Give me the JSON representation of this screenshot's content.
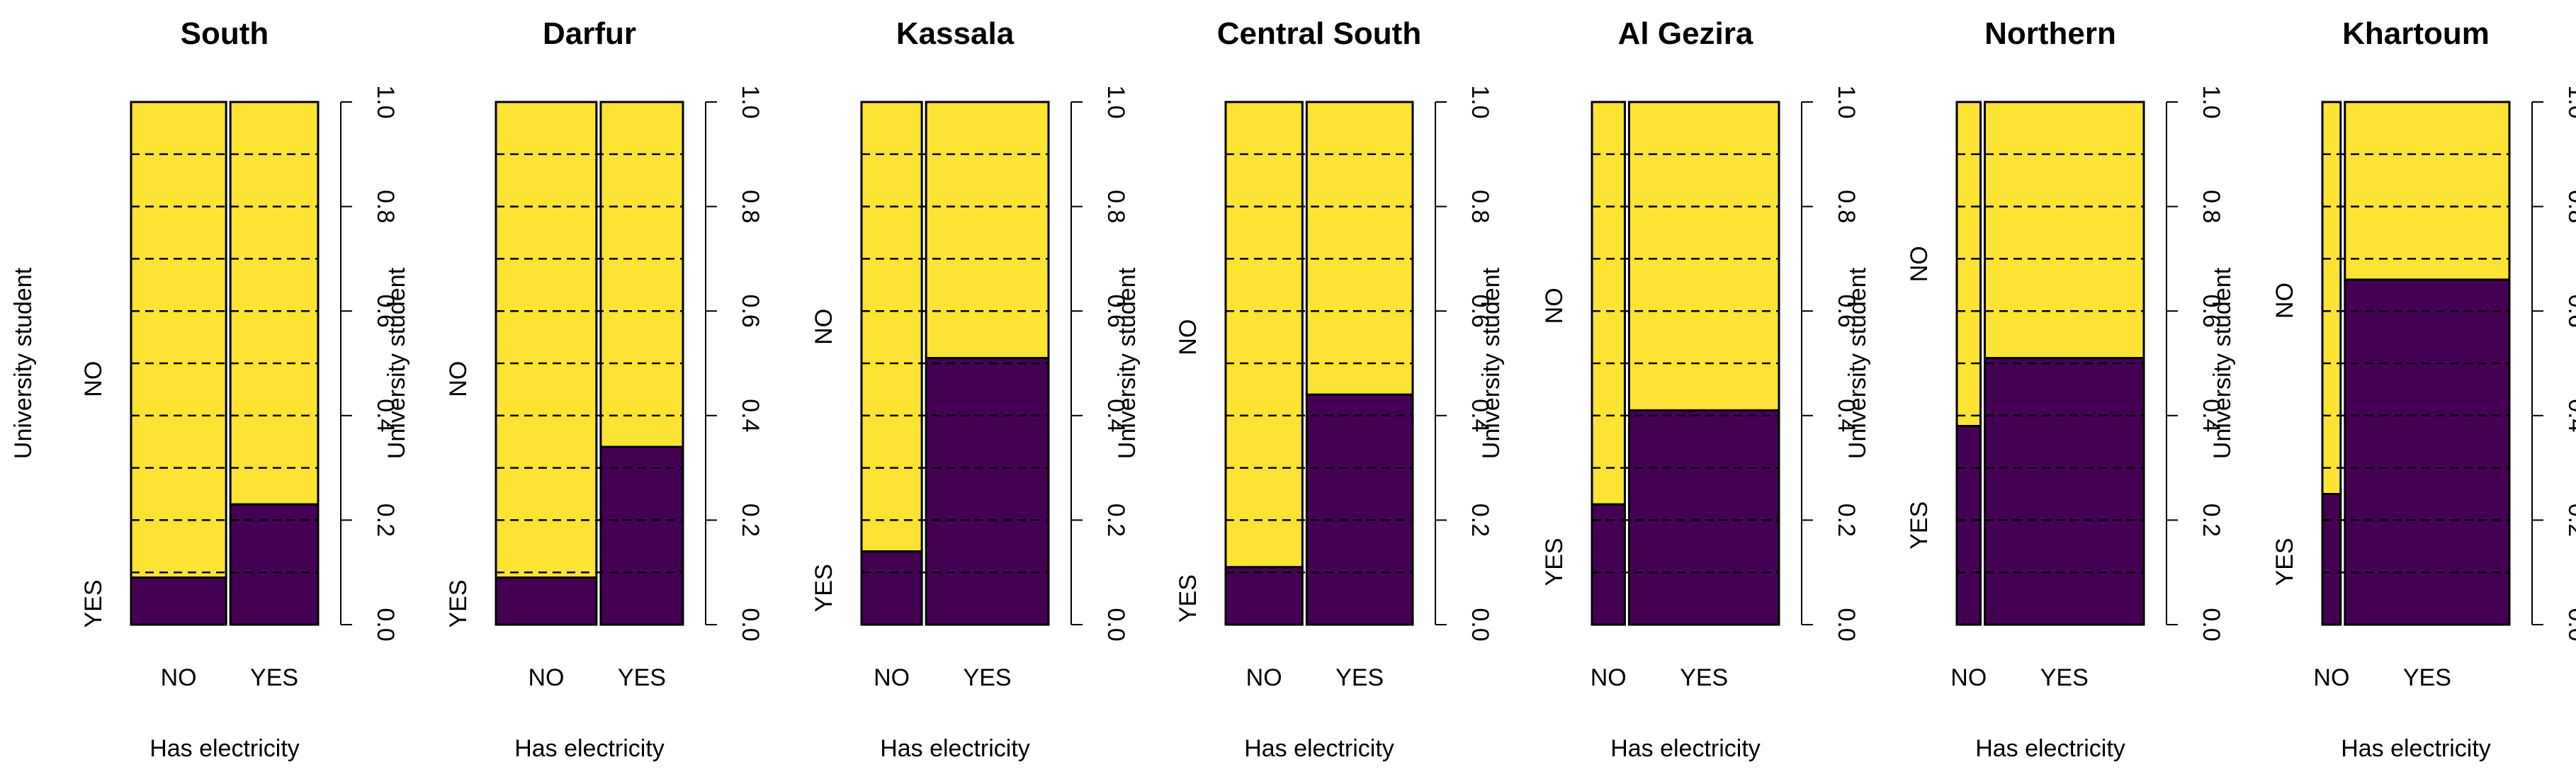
{
  "chart_data": {
    "type": "mosaic",
    "x_variable": "Has electricity",
    "y_variable": "University student",
    "x_categories": [
      "NO",
      "YES"
    ],
    "y_categories": [
      "NO",
      "YES"
    ],
    "right_axis_ticks": [
      "0.0",
      "0.2",
      "0.4",
      "0.6",
      "0.8",
      "1.0"
    ],
    "gridlines": [
      0.1,
      0.2,
      0.3,
      0.4,
      0.5,
      0.6,
      0.7,
      0.8,
      0.9
    ],
    "colors": {
      "no": "#FDE333",
      "yes": "#440154"
    },
    "panels": [
      {
        "title": "South",
        "xlabel": "Has electricity",
        "ylabel": "University student",
        "show_right_ylabel": true,
        "electricity_yes_share": 0.48,
        "student_yes_given_no_electricity": 0.09,
        "student_yes_given_electricity": 0.23,
        "no_label_level": 0.47,
        "yes_label_level": 0.04
      },
      {
        "title": "Darfur",
        "xlabel": "Has electricity",
        "ylabel": "University student",
        "show_right_ylabel": false,
        "electricity_yes_share": 0.45,
        "student_yes_given_no_electricity": 0.09,
        "student_yes_given_electricity": 0.34,
        "no_label_level": 0.47,
        "yes_label_level": 0.04
      },
      {
        "title": "Kassala",
        "xlabel": "Has electricity",
        "ylabel": "University student",
        "show_right_ylabel": true,
        "electricity_yes_share": 0.67,
        "student_yes_given_no_electricity": 0.14,
        "student_yes_given_electricity": 0.51,
        "no_label_level": 0.57,
        "yes_label_level": 0.07
      },
      {
        "title": "Central South",
        "xlabel": "Has electricity",
        "ylabel": "University student",
        "show_right_ylabel": true,
        "electricity_yes_share": 0.58,
        "student_yes_given_no_electricity": 0.11,
        "student_yes_given_electricity": 0.44,
        "no_label_level": 0.55,
        "yes_label_level": 0.05
      },
      {
        "title": "Al Gezira",
        "xlabel": "Has electricity",
        "ylabel": "University student",
        "show_right_ylabel": true,
        "electricity_yes_share": 0.82,
        "student_yes_given_no_electricity": 0.23,
        "student_yes_given_electricity": 0.41,
        "no_label_level": 0.61,
        "yes_label_level": 0.12
      },
      {
        "title": "Northern",
        "xlabel": "Has electricity",
        "ylabel": "University student",
        "show_right_ylabel": true,
        "electricity_yes_share": 0.87,
        "student_yes_given_no_electricity": 0.38,
        "student_yes_given_electricity": 0.51,
        "no_label_level": 0.69,
        "yes_label_level": 0.19
      },
      {
        "title": "Khartoum",
        "xlabel": "Has electricity",
        "ylabel": "University student",
        "show_right_ylabel": false,
        "electricity_yes_share": 0.9,
        "student_yes_given_no_electricity": 0.25,
        "student_yes_given_electricity": 0.66,
        "no_label_level": 0.62,
        "yes_label_level": 0.12
      }
    ]
  }
}
